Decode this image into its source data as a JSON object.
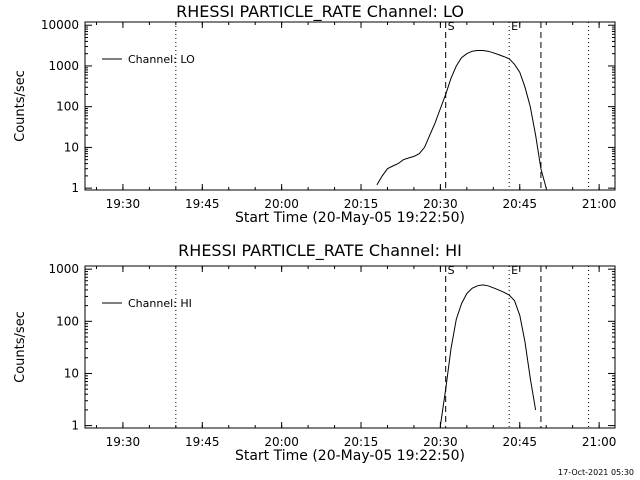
{
  "footer": {
    "timestamp": "17-Oct-2021 05:30"
  },
  "chart_data": [
    {
      "type": "line",
      "title": "RHESSI PARTICLE_RATE Channel: LO",
      "xlabel": "Start Time (20-May-05 19:22:50)",
      "ylabel": "Counts/sec",
      "yscale": "log",
      "ylim": [
        0.9,
        12000
      ],
      "xlim": [
        "19:22:50",
        "21:03:00"
      ],
      "xticks": [
        "19:30",
        "19:45",
        "20:00",
        "20:15",
        "20:30",
        "20:45",
        "21:00"
      ],
      "yticks": [
        1,
        10,
        100,
        1000,
        10000
      ],
      "yticklabels": [
        "1",
        "10",
        "100",
        "1000",
        "10000"
      ],
      "legend": {
        "label": "Channel: LO",
        "placement": "top-left"
      },
      "markers": [
        {
          "time": "19:40",
          "style": "dotted",
          "label": ""
        },
        {
          "time": "20:31",
          "style": "dashed",
          "label": "S"
        },
        {
          "time": "20:43",
          "style": "dotted",
          "label": "E"
        },
        {
          "time": "20:49",
          "style": "dashed",
          "label": ""
        },
        {
          "time": "20:58",
          "style": "dotted",
          "label": ""
        }
      ],
      "series": [
        {
          "name": "Channel: LO",
          "x": [
            "20:18",
            "20:19",
            "20:20",
            "20:21",
            "20:22",
            "20:23",
            "20:24",
            "20:25",
            "20:26",
            "20:27",
            "20:28",
            "20:29",
            "20:30",
            "20:31",
            "20:32",
            "20:33",
            "20:34",
            "20:35",
            "20:36",
            "20:37",
            "20:38",
            "20:39",
            "20:40",
            "20:41",
            "20:42",
            "20:43",
            "20:44",
            "20:45",
            "20:46",
            "20:47",
            "20:48",
            "20:49",
            "20:50"
          ],
          "y": [
            1.2,
            2,
            3,
            3.5,
            4,
            5,
            5.5,
            6,
            7,
            10,
            20,
            40,
            90,
            200,
            500,
            1000,
            1600,
            2000,
            2300,
            2400,
            2400,
            2300,
            2100,
            1900,
            1700,
            1500,
            1100,
            700,
            300,
            100,
            20,
            3,
            1
          ]
        }
      ]
    },
    {
      "type": "line",
      "title": "RHESSI PARTICLE_RATE Channel: HI",
      "xlabel": "Start Time (20-May-05 19:22:50)",
      "ylabel": "Counts/sec",
      "yscale": "log",
      "ylim": [
        0.9,
        1150
      ],
      "xlim": [
        "19:22:50",
        "21:03:00"
      ],
      "xticks": [
        "19:30",
        "19:45",
        "20:00",
        "20:15",
        "20:30",
        "20:45",
        "21:00"
      ],
      "yticks": [
        1,
        10,
        100,
        1000
      ],
      "yticklabels": [
        "1",
        "10",
        "100",
        "1000"
      ],
      "legend": {
        "label": "Channel: HI",
        "placement": "top-left"
      },
      "markers": [
        {
          "time": "19:40",
          "style": "dotted",
          "label": ""
        },
        {
          "time": "20:31",
          "style": "dashed",
          "label": "S"
        },
        {
          "time": "20:43",
          "style": "dotted",
          "label": "E"
        },
        {
          "time": "20:49",
          "style": "dashed",
          "label": ""
        },
        {
          "time": "20:58",
          "style": "dotted",
          "label": ""
        }
      ],
      "series": [
        {
          "name": "Channel: HI",
          "x": [
            "20:30",
            "20:31",
            "20:32",
            "20:33",
            "20:34",
            "20:35",
            "20:36",
            "20:37",
            "20:38",
            "20:39",
            "20:40",
            "20:41",
            "20:42",
            "20:43",
            "20:44",
            "20:45",
            "20:46",
            "20:47",
            "20:48"
          ],
          "y": [
            1,
            5,
            30,
            110,
            220,
            340,
            430,
            480,
            500,
            480,
            440,
            400,
            360,
            320,
            250,
            130,
            40,
            8,
            2
          ]
        }
      ]
    }
  ]
}
